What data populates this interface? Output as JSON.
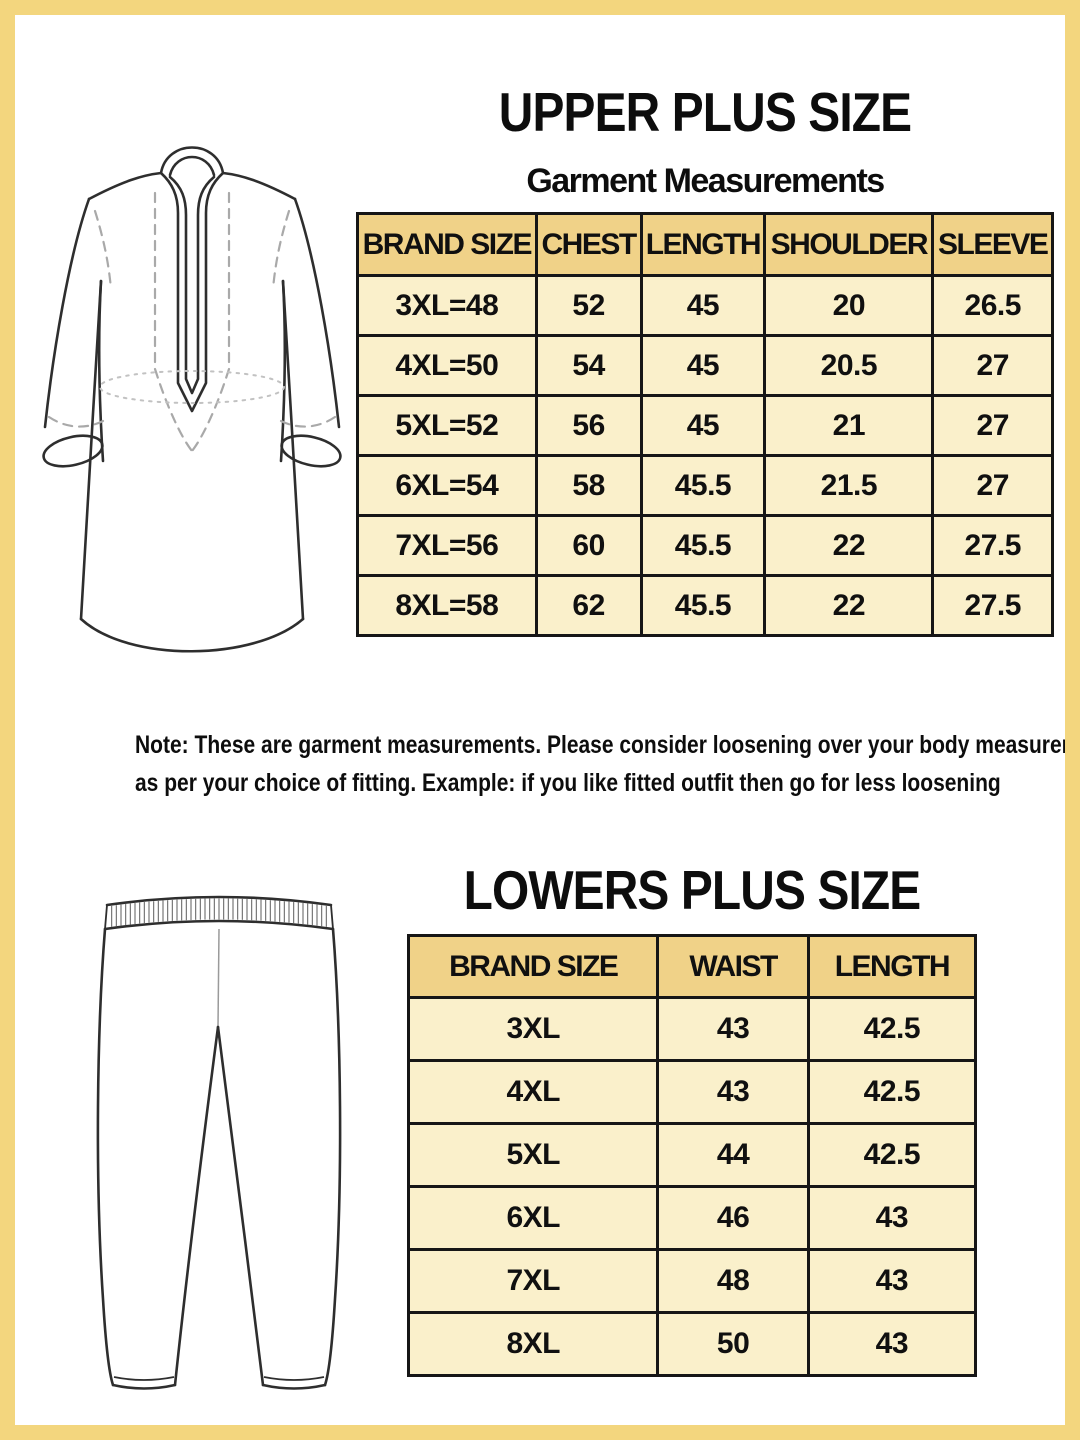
{
  "upper": {
    "title": "UPPER PLUS SIZE",
    "subtitle": "Garment Measurements",
    "table": {
      "headers": [
        "BRAND SIZE",
        "CHEST",
        "LENGTH",
        "SHOULDER",
        "SLEEVE"
      ],
      "rows": [
        [
          "3XL=48",
          "52",
          "45",
          "20",
          "26.5"
        ],
        [
          "4XL=50",
          "54",
          "45",
          "20.5",
          "27"
        ],
        [
          "5XL=52",
          "56",
          "45",
          "21",
          "27"
        ],
        [
          "6XL=54",
          "58",
          "45.5",
          "21.5",
          "27"
        ],
        [
          "7XL=56",
          "60",
          "45.5",
          "22",
          "27.5"
        ],
        [
          "8XL=58",
          "62",
          "45.5",
          "22",
          "27.5"
        ]
      ]
    }
  },
  "note": {
    "line1": "Note: These are garment measurements. Please consider loosening over your body measurements",
    "line2": "as per your choice of fitting. Example: if you like fitted outfit then go for less loosening"
  },
  "lower": {
    "title": "LOWERS PLUS SIZE",
    "table": {
      "headers": [
        "BRAND SIZE",
        "WAIST",
        "LENGTH"
      ],
      "rows": [
        [
          "3XL",
          "43",
          "42.5"
        ],
        [
          "4XL",
          "43",
          "42.5"
        ],
        [
          "5XL",
          "44",
          "42.5"
        ],
        [
          "6XL",
          "46",
          "43"
        ],
        [
          "7XL",
          "48",
          "43"
        ],
        [
          "8XL",
          "50",
          "43"
        ]
      ]
    }
  },
  "icons": {
    "kurta": "kurta-line-drawing",
    "pants": "leggings-line-drawing"
  },
  "colors": {
    "frame": "#f3d67e",
    "header_bg": "#f0d288",
    "cell_bg": "#faf0cb",
    "table_border": "#161616",
    "text": "#111111",
    "sketch_line": "#2e2e2e",
    "sketch_dash": "#a9a9a9"
  }
}
